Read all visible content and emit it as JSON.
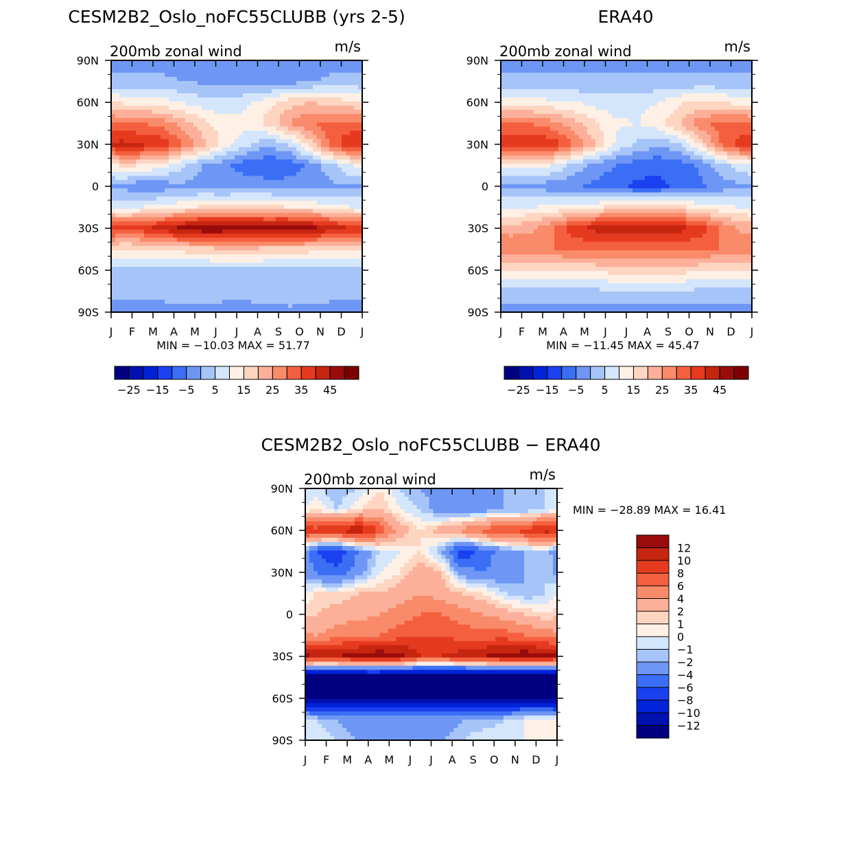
{
  "chart_data": [
    {
      "type": "heatmap",
      "title": "CESM2B2_Oslo_noFC55CLUBB (yrs 2-5)",
      "subtitle": "200mb zonal wind",
      "units": "m/s",
      "xlabel": "",
      "ylabel": "",
      "x_ticks": [
        "J",
        "F",
        "M",
        "A",
        "M",
        "J",
        "J",
        "A",
        "S",
        "O",
        "N",
        "D",
        "J"
      ],
      "y_ticks": [
        "90N",
        "60N",
        "30N",
        "0",
        "30S",
        "60S",
        "90S"
      ],
      "stats": "MIN = −10.03 MAX =  51.77",
      "min": -10.03,
      "max": 51.77,
      "colorbar": {
        "orientation": "horizontal",
        "boundaries": [
          -30,
          -25,
          -20,
          -15,
          -10,
          -5,
          0,
          5,
          10,
          15,
          20,
          25,
          30,
          35,
          40,
          45,
          50
        ],
        "labels": [
          "−25",
          "−15",
          "−5",
          "5",
          "15",
          "25",
          "35",
          "45"
        ],
        "colors": [
          "#000080",
          "#0011b0",
          "#0022d8",
          "#1a40f0",
          "#3b6ef5",
          "#6e96f5",
          "#a6c4f8",
          "#d4e6fb",
          "#fff0e6",
          "#fdd5c0",
          "#fcb09a",
          "#f98b6a",
          "#f4603f",
          "#e63a1f",
          "#c62510",
          "#9a0c0b",
          "#7b0000"
        ]
      },
      "field": {
        "lat": [
          90,
          75,
          60,
          45,
          30,
          15,
          0,
          -15,
          -30,
          -45,
          -60,
          -75,
          -90
        ],
        "months": [
          "Jan",
          "Feb",
          "Mar",
          "Apr",
          "May",
          "Jun",
          "Jul",
          "Aug",
          "Sep",
          "Oct",
          "Nov",
          "Dec"
        ],
        "values": [
          [
            -2,
            -2,
            -2,
            -2,
            -2,
            -2,
            -2,
            -3,
            -3,
            -2,
            -2,
            -2
          ],
          [
            1,
            1,
            1,
            0,
            -1,
            -2,
            -2,
            -3,
            -2,
            -1,
            1,
            1
          ],
          [
            14,
            13,
            12,
            9,
            7,
            6,
            9,
            13,
            18,
            20,
            18,
            16
          ],
          [
            30,
            30,
            28,
            22,
            16,
            12,
            12,
            17,
            25,
            30,
            32,
            32
          ],
          [
            42,
            41,
            38,
            30,
            21,
            12,
            6,
            1,
            5,
            17,
            32,
            40
          ],
          [
            16,
            15,
            12,
            5,
            -1,
            -4,
            -8,
            -10,
            -8,
            -4,
            3,
            10
          ],
          [
            -1,
            -5,
            -3,
            -1,
            -2,
            -3,
            -2,
            -2,
            -3,
            -2,
            -1,
            0
          ],
          [
            8,
            10,
            12,
            14,
            16,
            17,
            17,
            16,
            15,
            14,
            12,
            10
          ],
          [
            38,
            39,
            43,
            48,
            51,
            50,
            49,
            49,
            50,
            48,
            43,
            40
          ],
          [
            14,
            14,
            16,
            17,
            18,
            19,
            19,
            18,
            18,
            17,
            16,
            15
          ],
          [
            3,
            3,
            3,
            3,
            3,
            3,
            3,
            3,
            3,
            3,
            3,
            3
          ],
          [
            1,
            2,
            3,
            3,
            5,
            4,
            3,
            3,
            5,
            3,
            2,
            1
          ],
          [
            -2,
            -3,
            -3,
            -2,
            -4,
            -4,
            -3,
            -2,
            -2,
            -2,
            -2,
            -2
          ]
        ]
      }
    },
    {
      "type": "heatmap",
      "title": "ERA40",
      "subtitle": "200mb zonal wind",
      "units": "m/s",
      "xlabel": "",
      "ylabel": "",
      "x_ticks": [
        "J",
        "F",
        "M",
        "A",
        "M",
        "J",
        "J",
        "A",
        "S",
        "O",
        "N",
        "D",
        "J"
      ],
      "y_ticks": [
        "90N",
        "60N",
        "30N",
        "0",
        "30S",
        "60S",
        "90S"
      ],
      "stats": "MIN = −11.45 MAX =  45.47",
      "min": -11.45,
      "max": 45.47,
      "colorbar": {
        "orientation": "horizontal",
        "boundaries": [
          -30,
          -25,
          -20,
          -15,
          -10,
          -5,
          0,
          5,
          10,
          15,
          20,
          25,
          30,
          35,
          40,
          45,
          50
        ],
        "labels": [
          "−25",
          "−15",
          "−5",
          "5",
          "15",
          "25",
          "35",
          "45"
        ],
        "colors": [
          "#000080",
          "#0011b0",
          "#0022d8",
          "#1a40f0",
          "#3b6ef5",
          "#6e96f5",
          "#a6c4f8",
          "#d4e6fb",
          "#fff0e6",
          "#fdd5c0",
          "#fcb09a",
          "#f98b6a",
          "#f4603f",
          "#e63a1f",
          "#c62510",
          "#9a0c0b",
          "#7b0000"
        ]
      },
      "field": {
        "lat": [
          90,
          75,
          60,
          45,
          30,
          15,
          0,
          -15,
          -30,
          -45,
          -60,
          -75,
          -90
        ],
        "months": [
          "Jan",
          "Feb",
          "Mar",
          "Apr",
          "May",
          "Jun",
          "Jul",
          "Aug",
          "Sep",
          "Oct",
          "Nov",
          "Dec"
        ],
        "values": [
          [
            -2,
            -2,
            -2,
            -2,
            -2,
            -2,
            -2,
            -2,
            -2,
            -2,
            -2,
            -2
          ],
          [
            1,
            1,
            1,
            1,
            1,
            1,
            1,
            1,
            1,
            1,
            1,
            1
          ],
          [
            12,
            12,
            11,
            10,
            8,
            7,
            8,
            10,
            14,
            16,
            15,
            13
          ],
          [
            30,
            30,
            27,
            22,
            16,
            11,
            10,
            13,
            20,
            28,
            32,
            32
          ],
          [
            40,
            40,
            38,
            30,
            20,
            9,
            4,
            1,
            4,
            15,
            30,
            38
          ],
          [
            12,
            12,
            10,
            3,
            -2,
            -5,
            -8,
            -9,
            -8,
            -4,
            3,
            8
          ],
          [
            -1,
            -2,
            -3,
            -4,
            -6,
            -9,
            -11,
            -11,
            -9,
            -6,
            -3,
            -1
          ],
          [
            10,
            10,
            11,
            12,
            14,
            17,
            18,
            18,
            16,
            14,
            11,
            10
          ],
          [
            22,
            24,
            30,
            38,
            42,
            44,
            44,
            44,
            42,
            38,
            30,
            24
          ],
          [
            30,
            30,
            30,
            31,
            31,
            31,
            32,
            32,
            32,
            31,
            30,
            30
          ],
          [
            15,
            14,
            14,
            15,
            16,
            17,
            18,
            18,
            17,
            16,
            14,
            15
          ],
          [
            3,
            3,
            3,
            4,
            4,
            4,
            4,
            4,
            4,
            4,
            3,
            3
          ],
          [
            -2,
            -2,
            -2,
            -2,
            -2,
            -2,
            -2,
            -2,
            -2,
            -2,
            -2,
            -2
          ]
        ]
      }
    },
    {
      "type": "heatmap",
      "title": "CESM2B2_Oslo_noFC55CLUBB − ERA40",
      "subtitle": "200mb zonal wind",
      "units": "m/s",
      "xlabel": "",
      "ylabel": "",
      "x_ticks": [
        "J",
        "F",
        "M",
        "A",
        "M",
        "J",
        "J",
        "A",
        "S",
        "O",
        "N",
        "D",
        "J"
      ],
      "y_ticks": [
        "90N",
        "60N",
        "30N",
        "0",
        "30S",
        "60S",
        "90S"
      ],
      "stats": "MIN = −28.89 MAX =  16.41",
      "min": -28.89,
      "max": 16.41,
      "colorbar": {
        "orientation": "vertical",
        "boundaries": [
          -14,
          -12,
          -10,
          -8,
          -6,
          -4,
          -2,
          -1,
          0,
          1,
          2,
          4,
          6,
          8,
          10,
          12,
          14
        ],
        "labels": [
          "−12",
          "−10",
          "−8",
          "−6",
          "−4",
          "−2",
          "−1",
          "0",
          "1",
          "2",
          "4",
          "6",
          "8",
          "10",
          "12"
        ],
        "colors": [
          "#000080",
          "#0011b0",
          "#0022d8",
          "#1a40f0",
          "#3b6ef5",
          "#6e96f5",
          "#a6c4f8",
          "#d4e6fb",
          "#fff0e6",
          "#fdd5c0",
          "#fcb09a",
          "#f98b6a",
          "#f4603f",
          "#e63a1f",
          "#c62510",
          "#9a0c0b"
        ]
      },
      "field": {
        "lat": [
          90,
          75,
          60,
          45,
          30,
          15,
          0,
          -15,
          -30,
          -45,
          -60,
          -75,
          -90
        ],
        "months": [
          "Jan",
          "Feb",
          "Mar",
          "Apr",
          "May",
          "Jun",
          "Jul",
          "Aug",
          "Sep",
          "Oct",
          "Nov",
          "Dec"
        ],
        "values": [
          [
            -0.5,
            -2,
            -1,
            1,
            -1,
            -2,
            -3,
            -3,
            -3,
            -2,
            -2,
            -1
          ],
          [
            1,
            -1,
            1,
            2,
            0,
            -1,
            -3,
            -4,
            -3,
            -2,
            -2,
            -1
          ],
          [
            9,
            10,
            12,
            8,
            3,
            1,
            3,
            5,
            7,
            8,
            9,
            11
          ],
          [
            -6,
            -8,
            -4,
            -1,
            0,
            1,
            -2,
            -8,
            -5,
            -3,
            -2,
            -1
          ],
          [
            -4,
            -5,
            -3,
            0,
            1,
            3,
            2,
            -3,
            -4,
            -3,
            -2,
            -1
          ],
          [
            1,
            1,
            2,
            2,
            3,
            4,
            3,
            2,
            1,
            -1,
            -2,
            -1
          ],
          [
            2,
            3,
            3,
            4,
            5,
            6,
            6,
            5,
            4,
            3,
            2,
            1
          ],
          [
            4,
            5,
            6,
            6,
            7,
            8,
            8,
            7,
            7,
            7,
            6,
            5
          ],
          [
            12,
            12,
            13,
            14,
            13,
            10,
            10,
            11,
            12,
            13,
            14,
            13
          ],
          [
            -16,
            -16,
            -15,
            -15,
            -16,
            -16,
            -16,
            -16,
            -16,
            -16,
            -16,
            -16
          ],
          [
            -13,
            -12,
            -12,
            -13,
            -13,
            -13,
            -13,
            -13,
            -13,
            -13,
            -12,
            -13
          ],
          [
            -1,
            -2,
            -3,
            -3,
            -3,
            -3,
            -3,
            -2,
            -2,
            -1,
            0,
            1
          ],
          [
            0,
            -1,
            -2,
            -2,
            -3,
            -4,
            -2,
            -1,
            0,
            0,
            0,
            0
          ]
        ]
      }
    }
  ]
}
